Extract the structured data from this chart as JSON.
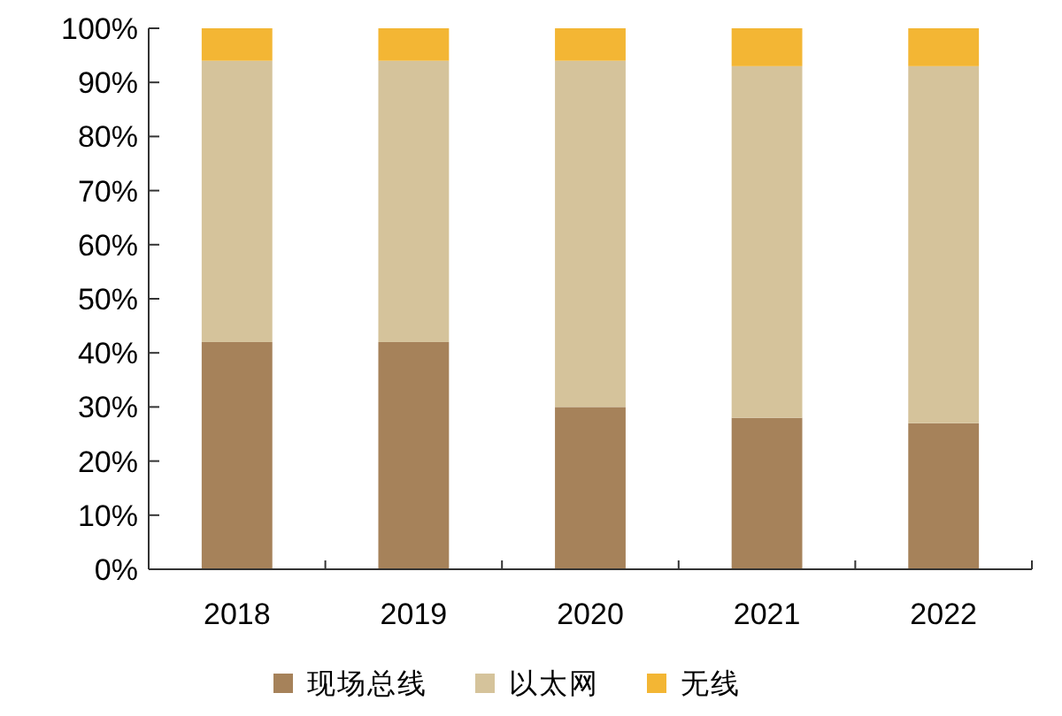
{
  "chart_data": {
    "type": "bar",
    "stacked": true,
    "categories": [
      "2018",
      "2019",
      "2020",
      "2021",
      "2022"
    ],
    "series": [
      {
        "name": "现场总线",
        "color": "#a6825a",
        "values": [
          42,
          42,
          30,
          28,
          27
        ]
      },
      {
        "name": "以太网",
        "color": "#d5c39b",
        "values": [
          52,
          52,
          64,
          65,
          66
        ]
      },
      {
        "name": "无线",
        "color": "#f3b634",
        "values": [
          6,
          6,
          6,
          7,
          7
        ]
      }
    ],
    "ylim": [
      0,
      100
    ],
    "yticks": [
      {
        "value": 0,
        "label": "0%"
      },
      {
        "value": 10,
        "label": "10%"
      },
      {
        "value": 20,
        "label": "20%"
      },
      {
        "value": 30,
        "label": "30%"
      },
      {
        "value": 40,
        "label": "40%"
      },
      {
        "value": 50,
        "label": "50%"
      },
      {
        "value": 60,
        "label": "60%"
      },
      {
        "value": 70,
        "label": "70%"
      },
      {
        "value": 80,
        "label": "80%"
      },
      {
        "value": 90,
        "label": "90%"
      },
      {
        "value": 100,
        "label": "100%"
      }
    ],
    "grid": false,
    "legend": "bottom"
  }
}
